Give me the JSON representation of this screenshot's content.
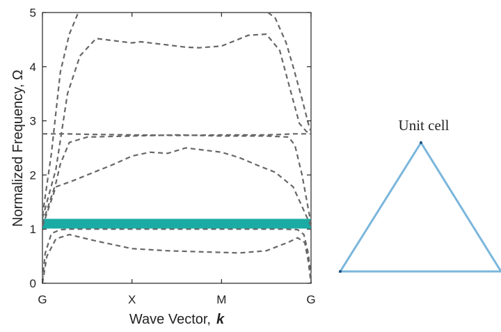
{
  "chart_data": {
    "type": "line",
    "xlabel": "Wave Vector,",
    "xlabel_symbol": "k",
    "ylabel": "Normalized Frequency, Ω",
    "x_ticks": [
      "G",
      "X",
      "M",
      "G"
    ],
    "x_tick_positions": [
      0,
      1,
      2,
      3
    ],
    "xlim": [
      0,
      3
    ],
    "y_ticks": [
      "0",
      "1",
      "2",
      "3",
      "4",
      "5"
    ],
    "ylim": [
      0,
      5
    ],
    "grid": false,
    "band_highlight": {
      "y": 1.1,
      "color": "#1aaca4"
    },
    "series_color": "#666666",
    "series": [
      {
        "x": [
          0,
          0.05,
          0.15,
          0.3,
          0.6,
          1.0,
          1.4,
          1.8,
          2.2,
          2.5,
          2.75,
          2.85,
          2.93,
          2.97,
          3.0
        ],
        "y": [
          0,
          0.5,
          0.82,
          0.9,
          0.78,
          0.64,
          0.6,
          0.58,
          0.56,
          0.6,
          0.76,
          0.84,
          0.75,
          0.4,
          0
        ]
      },
      {
        "x": [
          0,
          0.03,
          0.1,
          0.2,
          0.3,
          1.0,
          2.0,
          2.7,
          2.85,
          2.92,
          2.97,
          3.0
        ],
        "y": [
          0.05,
          0.55,
          0.92,
          0.99,
          1.0,
          1.0,
          1.0,
          1.0,
          0.99,
          0.9,
          0.55,
          0.1
        ]
      },
      {
        "x": [
          0,
          0.15,
          0.35,
          0.5,
          0.8,
          1.0,
          1.2,
          1.4,
          1.6,
          1.8,
          2.0,
          2.2,
          2.4,
          2.6,
          2.8,
          3.0
        ],
        "y": [
          1.05,
          1.78,
          1.9,
          2.0,
          2.2,
          2.35,
          2.42,
          2.4,
          2.5,
          2.46,
          2.42,
          2.32,
          2.18,
          2.05,
          1.78,
          1.05
        ]
      },
      {
        "x": [
          0,
          0.15,
          0.2,
          0.3,
          0.5,
          1.0,
          1.5,
          2.0,
          2.5,
          2.75,
          2.82,
          2.9,
          3.0
        ],
        "y": [
          1.1,
          1.85,
          2.2,
          2.6,
          2.7,
          2.72,
          2.74,
          2.72,
          2.72,
          2.7,
          2.55,
          2.0,
          1.1
        ]
      },
      {
        "x": [
          0,
          0.25,
          0.5,
          1.0,
          1.5,
          2.0,
          2.5,
          2.7,
          2.78,
          3.0
        ],
        "y": [
          2.76,
          2.76,
          2.75,
          2.74,
          2.73,
          2.74,
          2.74,
          2.75,
          2.76,
          2.76
        ]
      },
      {
        "x": [
          0,
          0.15,
          0.28,
          0.42,
          0.6,
          0.8,
          1.0,
          1.1,
          1.3,
          1.5,
          1.6,
          1.75,
          2.0,
          2.15,
          2.3,
          2.5,
          2.65,
          2.78,
          2.87,
          2.95,
          3.0
        ],
        "y": [
          1.2,
          2.1,
          3.5,
          4.2,
          4.52,
          4.48,
          4.44,
          4.46,
          4.42,
          4.38,
          4.36,
          4.35,
          4.38,
          4.48,
          4.58,
          4.6,
          4.3,
          3.5,
          2.95,
          2.8,
          2.78
        ]
      },
      {
        "x": [
          0,
          0.1,
          0.2,
          0.3,
          0.4
        ],
        "y": [
          1.25,
          2.4,
          3.9,
          4.6,
          5.0
        ]
      },
      {
        "x": [
          2.52,
          2.6,
          2.72,
          2.8,
          2.9,
          2.97,
          3.0
        ],
        "y": [
          5.0,
          4.9,
          4.45,
          4.0,
          3.4,
          2.95,
          2.8
        ]
      }
    ]
  },
  "inset": {
    "label": "Unit cell",
    "line_color": "#7ab6dc",
    "vertex_color": "#1f4e79"
  }
}
